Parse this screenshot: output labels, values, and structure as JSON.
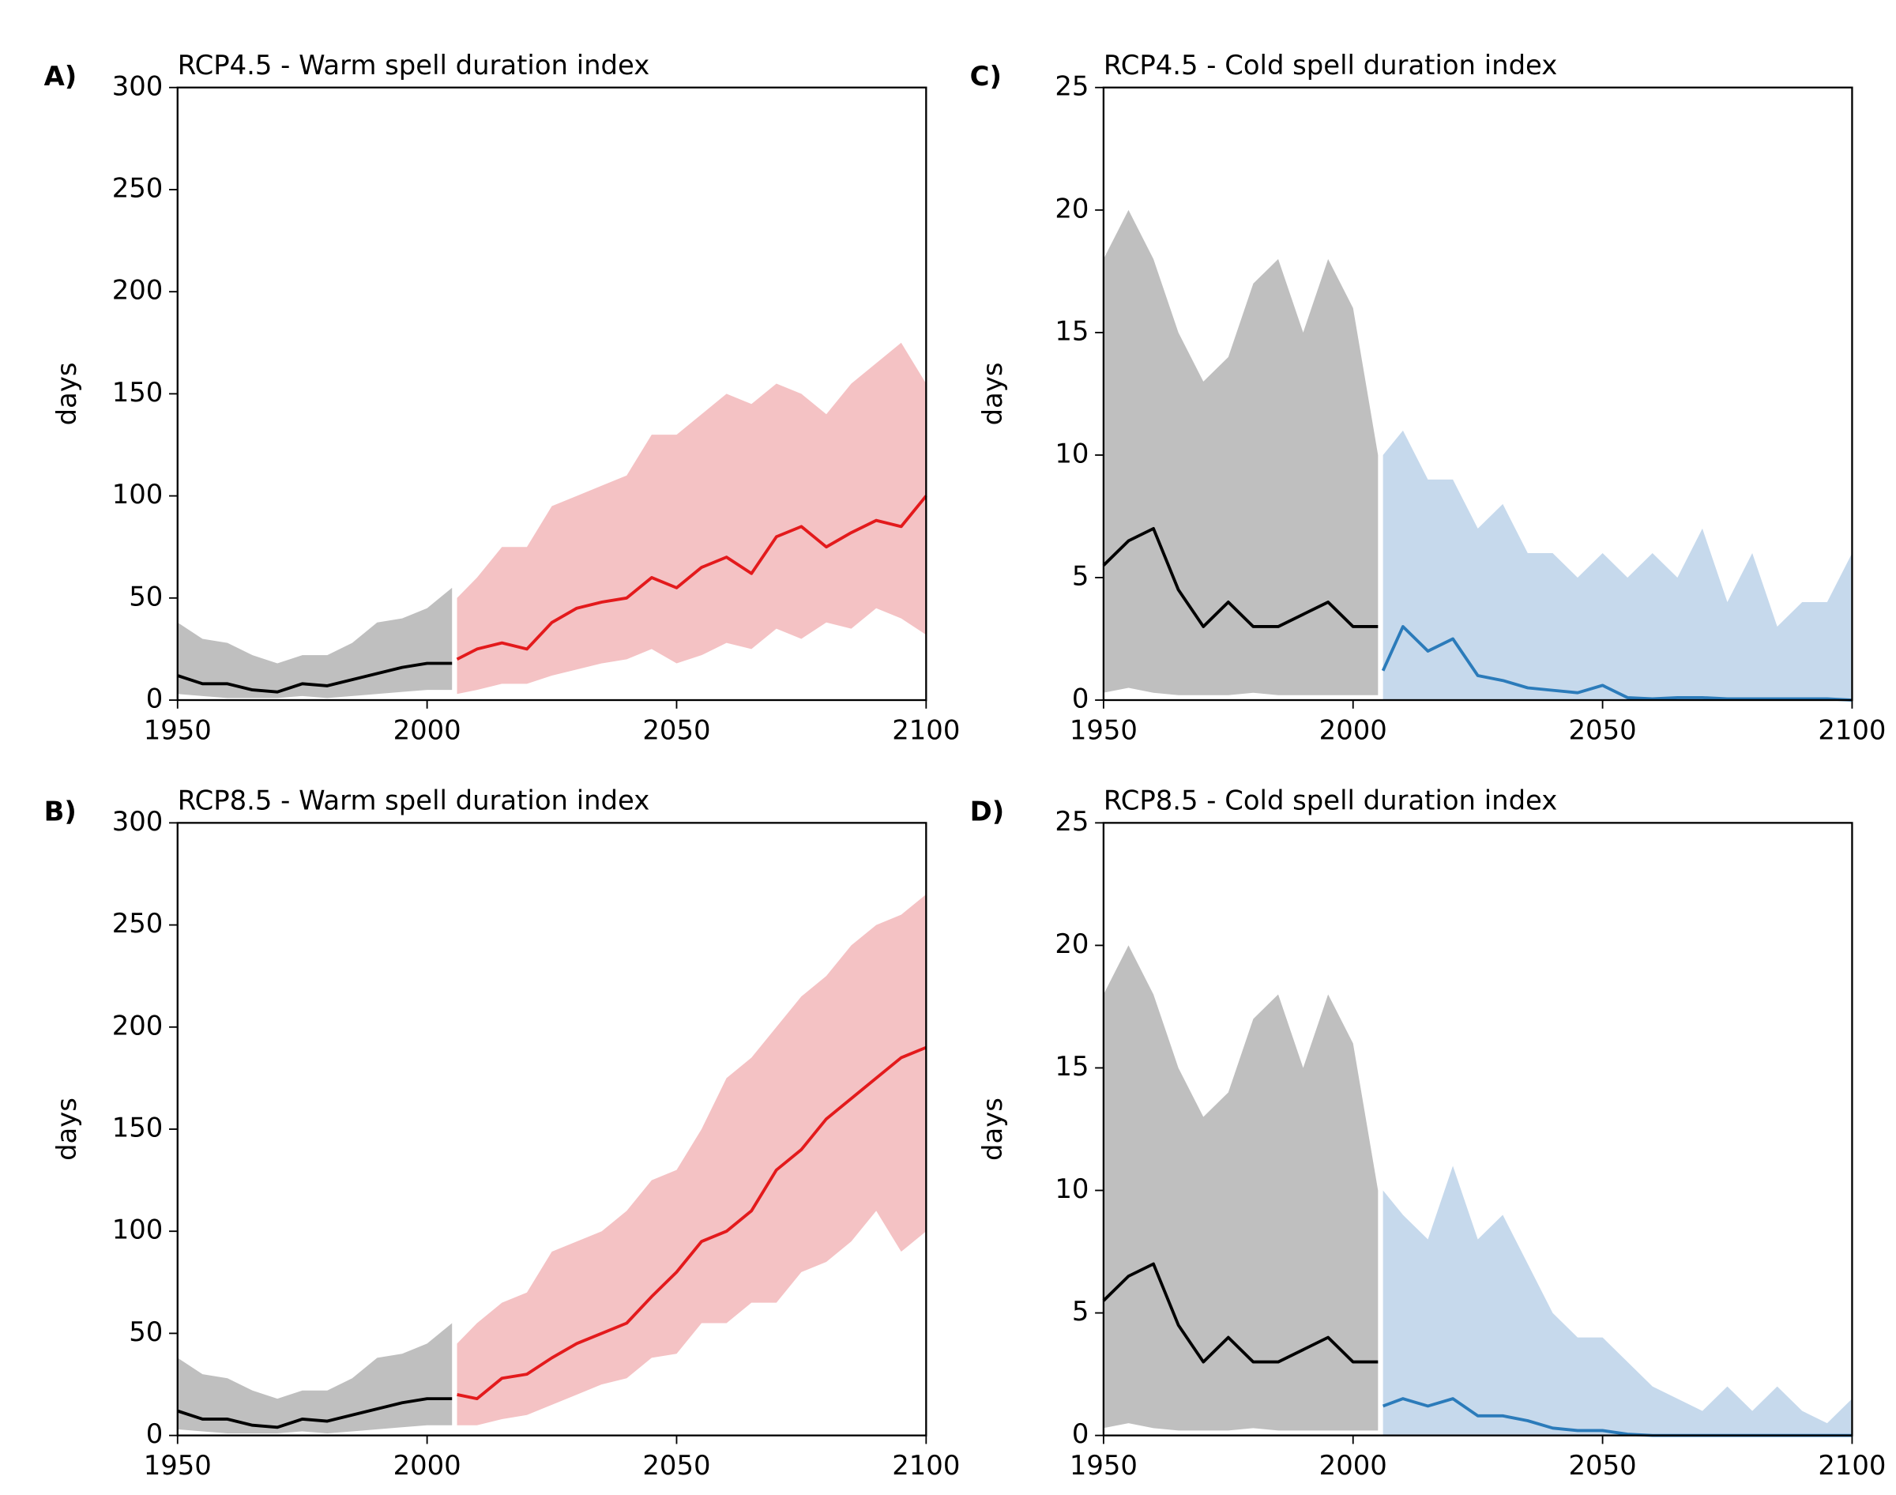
{
  "chart_data": [
    {
      "type": "line",
      "panel_label": "A)",
      "title": "RCP4.5 - Warm spell duration index",
      "ylabel": "days",
      "xlim": [
        1950,
        2100
      ],
      "xticks": [
        1950,
        2000,
        2050,
        2100
      ],
      "ylim": [
        0,
        300
      ],
      "yticks": [
        0,
        50,
        100,
        150,
        200,
        250,
        300
      ],
      "series": [
        {
          "color": "#000000",
          "band_color": "#bfbfbf",
          "x": [
            1950,
            1955,
            1960,
            1965,
            1970,
            1975,
            1980,
            1985,
            1990,
            1995,
            2000,
            2005
          ],
          "values": [
            12,
            8,
            8,
            5,
            4,
            8,
            7,
            10,
            13,
            16,
            18,
            18
          ],
          "lower": [
            3,
            2,
            1,
            1,
            1,
            2,
            1,
            2,
            3,
            4,
            5,
            5
          ],
          "upper": [
            38,
            30,
            28,
            22,
            18,
            22,
            22,
            28,
            38,
            40,
            45,
            55
          ]
        },
        {
          "color": "#e31a1c",
          "band_color": "#f4c2c4",
          "x": [
            2006,
            2010,
            2015,
            2020,
            2025,
            2030,
            2035,
            2040,
            2045,
            2050,
            2055,
            2060,
            2065,
            2070,
            2075,
            2080,
            2085,
            2090,
            2095,
            2100
          ],
          "values": [
            20,
            25,
            28,
            25,
            38,
            45,
            48,
            50,
            60,
            55,
            65,
            70,
            62,
            80,
            85,
            75,
            82,
            88,
            85,
            100
          ],
          "lower": [
            3,
            5,
            8,
            8,
            12,
            15,
            18,
            20,
            25,
            18,
            22,
            28,
            25,
            35,
            30,
            38,
            35,
            45,
            40,
            32
          ],
          "upper": [
            50,
            60,
            75,
            75,
            95,
            100,
            105,
            110,
            130,
            130,
            140,
            150,
            145,
            155,
            150,
            140,
            155,
            165,
            175,
            155
          ]
        }
      ]
    },
    {
      "type": "line",
      "panel_label": "C)",
      "title": "RCP4.5 - Cold spell duration index",
      "ylabel": "days",
      "xlim": [
        1950,
        2100
      ],
      "xticks": [
        1950,
        2000,
        2050,
        2100
      ],
      "ylim": [
        0,
        25
      ],
      "yticks": [
        0,
        5,
        10,
        15,
        20,
        25
      ],
      "series": [
        {
          "color": "#000000",
          "band_color": "#bfbfbf",
          "x": [
            1950,
            1955,
            1960,
            1965,
            1970,
            1975,
            1980,
            1985,
            1990,
            1995,
            2000,
            2005
          ],
          "values": [
            5.5,
            6.5,
            7,
            4.5,
            3,
            4,
            3,
            3,
            3.5,
            4,
            3,
            3
          ],
          "lower": [
            0.3,
            0.5,
            0.3,
            0.2,
            0.2,
            0.2,
            0.3,
            0.2,
            0.2,
            0.2,
            0.2,
            0.2
          ],
          "upper": [
            18,
            20,
            18,
            15,
            13,
            14,
            17,
            18,
            15,
            18,
            16,
            10
          ]
        },
        {
          "color": "#2b7bba",
          "band_color": "#c6d9ec",
          "x": [
            2006,
            2010,
            2015,
            2020,
            2025,
            2030,
            2035,
            2040,
            2045,
            2050,
            2055,
            2060,
            2065,
            2070,
            2075,
            2080,
            2085,
            2090,
            2095,
            2100
          ],
          "values": [
            1.2,
            3,
            2,
            2.5,
            1,
            0.8,
            0.5,
            0.4,
            0.3,
            0.6,
            0.1,
            0.05,
            0.1,
            0.1,
            0.05,
            0.05,
            0.05,
            0.05,
            0.05,
            0
          ],
          "lower": [
            0,
            0,
            0,
            0,
            0,
            0,
            0,
            0,
            0,
            0,
            0,
            0,
            0,
            0,
            0,
            0,
            0,
            0,
            0,
            0
          ],
          "upper": [
            10,
            11,
            9,
            9,
            7,
            8,
            6,
            6,
            5,
            6,
            5,
            6,
            5,
            7,
            4,
            6,
            3,
            4,
            4,
            6
          ]
        }
      ]
    },
    {
      "type": "line",
      "panel_label": "B)",
      "title": "RCP8.5 - Warm spell duration index",
      "ylabel": "days",
      "xlim": [
        1950,
        2100
      ],
      "xticks": [
        1950,
        2000,
        2050,
        2100
      ],
      "ylim": [
        0,
        300
      ],
      "yticks": [
        0,
        50,
        100,
        150,
        200,
        250,
        300
      ],
      "series": [
        {
          "color": "#000000",
          "band_color": "#bfbfbf",
          "x": [
            1950,
            1955,
            1960,
            1965,
            1970,
            1975,
            1980,
            1985,
            1990,
            1995,
            2000,
            2005
          ],
          "values": [
            12,
            8,
            8,
            5,
            4,
            8,
            7,
            10,
            13,
            16,
            18,
            18
          ],
          "lower": [
            3,
            2,
            1,
            1,
            1,
            2,
            1,
            2,
            3,
            4,
            5,
            5
          ],
          "upper": [
            38,
            30,
            28,
            22,
            18,
            22,
            22,
            28,
            38,
            40,
            45,
            55
          ]
        },
        {
          "color": "#e31a1c",
          "band_color": "#f4c2c4",
          "x": [
            2006,
            2010,
            2015,
            2020,
            2025,
            2030,
            2035,
            2040,
            2045,
            2050,
            2055,
            2060,
            2065,
            2070,
            2075,
            2080,
            2085,
            2090,
            2095,
            2100
          ],
          "values": [
            20,
            18,
            28,
            30,
            38,
            45,
            50,
            55,
            68,
            80,
            95,
            100,
            110,
            130,
            140,
            155,
            165,
            175,
            185,
            190
          ],
          "lower": [
            5,
            5,
            8,
            10,
            15,
            20,
            25,
            28,
            38,
            40,
            55,
            55,
            65,
            65,
            80,
            85,
            95,
            110,
            90,
            100
          ],
          "upper": [
            45,
            55,
            65,
            70,
            90,
            95,
            100,
            110,
            125,
            130,
            150,
            175,
            185,
            200,
            215,
            225,
            240,
            250,
            255,
            265
          ]
        }
      ]
    },
    {
      "type": "line",
      "panel_label": "D)",
      "title": "RCP8.5 - Cold spell duration index",
      "ylabel": "days",
      "xlim": [
        1950,
        2100
      ],
      "xticks": [
        1950,
        2000,
        2050,
        2100
      ],
      "ylim": [
        0,
        25
      ],
      "yticks": [
        0,
        5,
        10,
        15,
        20,
        25
      ],
      "series": [
        {
          "color": "#000000",
          "band_color": "#bfbfbf",
          "x": [
            1950,
            1955,
            1960,
            1965,
            1970,
            1975,
            1980,
            1985,
            1990,
            1995,
            2000,
            2005
          ],
          "values": [
            5.5,
            6.5,
            7,
            4.5,
            3,
            4,
            3,
            3,
            3.5,
            4,
            3,
            3
          ],
          "lower": [
            0.3,
            0.5,
            0.3,
            0.2,
            0.2,
            0.2,
            0.3,
            0.2,
            0.2,
            0.2,
            0.2,
            0.2
          ],
          "upper": [
            18,
            20,
            18,
            15,
            13,
            14,
            17,
            18,
            15,
            18,
            16,
            10
          ]
        },
        {
          "color": "#2b7bba",
          "band_color": "#c6d9ec",
          "x": [
            2006,
            2010,
            2015,
            2020,
            2025,
            2030,
            2035,
            2040,
            2045,
            2050,
            2055,
            2060,
            2065,
            2070,
            2075,
            2080,
            2085,
            2090,
            2095,
            2100
          ],
          "values": [
            1.2,
            1.5,
            1.2,
            1.5,
            0.8,
            0.8,
            0.6,
            0.3,
            0.2,
            0.2,
            0.05,
            0,
            0,
            0,
            0,
            0,
            0,
            0,
            0,
            0
          ],
          "lower": [
            0,
            0,
            0,
            0,
            0,
            0,
            0,
            0,
            0,
            0,
            0,
            0,
            0,
            0,
            0,
            0,
            0,
            0,
            0,
            0
          ],
          "upper": [
            10,
            9,
            8,
            11,
            8,
            9,
            7,
            5,
            4,
            4,
            3,
            2,
            1.5,
            1,
            2,
            1,
            2,
            1,
            0.5,
            1.5
          ]
        }
      ]
    }
  ]
}
